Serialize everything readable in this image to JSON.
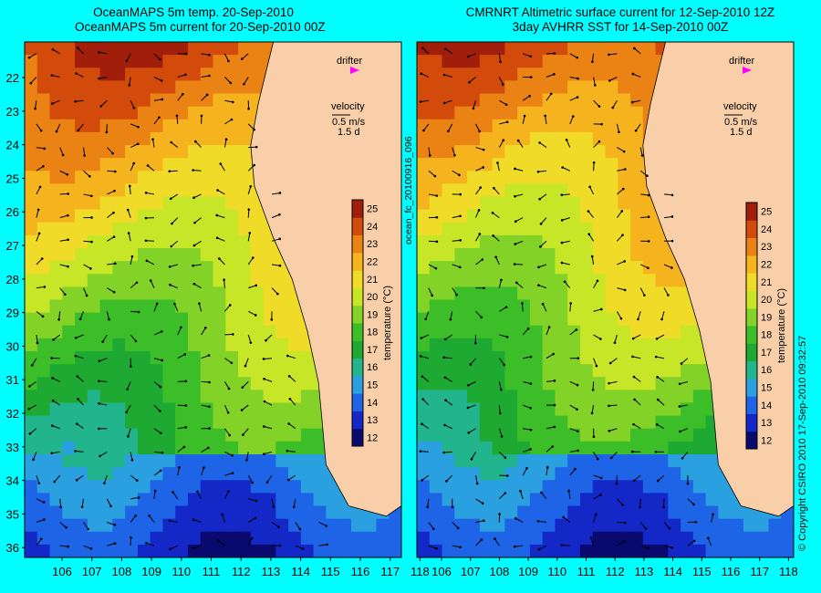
{
  "panels": [
    {
      "title_line1": "OceanMAPS 5m temp. 20-Sep-2010",
      "title_line2": "OceanMAPS 5m current for 20-Sep-2010 00Z",
      "drifter_label": "drifter",
      "velocity_label": "velocity",
      "velocity_scale": "0.5 m/s",
      "velocity_time": "1.5 d",
      "colorbar_label": "temperature (°C)",
      "x_ticks": [
        "106",
        "107",
        "108",
        "109",
        "110",
        "111",
        "112",
        "113",
        "114",
        "115",
        "116",
        "117",
        "118"
      ],
      "y_ticks": [
        "22",
        "23",
        "24",
        "25",
        "26",
        "27",
        "28",
        "29",
        "30",
        "31",
        "32",
        "33",
        "34",
        "35",
        "36"
      ],
      "colorbar_ticks": [
        "12",
        "13",
        "14",
        "15",
        "16",
        "17",
        "18",
        "19",
        "20",
        "21",
        "22",
        "23",
        "24",
        "25"
      ]
    },
    {
      "title_line1": "CMRNRT Altimetric surface current for 12-Sep-2010 12Z",
      "title_line2": "3day AVHRR SST for 14-Sep-2010 00Z",
      "drifter_label": "drifter",
      "velocity_label": "velocity",
      "velocity_scale": "0.5 m/s",
      "velocity_time": "1.5 d",
      "colorbar_label": "temperature (°C)",
      "x_ticks": [
        "106",
        "107",
        "108",
        "109",
        "110",
        "111",
        "112",
        "113",
        "114",
        "115",
        "116",
        "117",
        "118"
      ],
      "y_ticks": [],
      "colorbar_ticks": [
        "12",
        "13",
        "14",
        "15",
        "16",
        "17",
        "18",
        "19",
        "20",
        "21",
        "22",
        "23",
        "24",
        "25"
      ]
    }
  ],
  "side_id": "ocean_fc_20100916_096",
  "copyright": "© Copyright CSIRO 2010   17-Sep-2010 09:32:57",
  "colors": {
    "background": "#00ffff",
    "land": "#f8cfa8",
    "drifter": "#ff00ff",
    "colorscale": [
      "#0a0a6e",
      "#1428c8",
      "#1e64e6",
      "#2aa0e0",
      "#22b48c",
      "#1eaa32",
      "#3cbe28",
      "#82d228",
      "#c8e628",
      "#f0dc28",
      "#f5b41e",
      "#eb8214",
      "#d24b0a",
      "#a01e0a"
    ]
  }
}
